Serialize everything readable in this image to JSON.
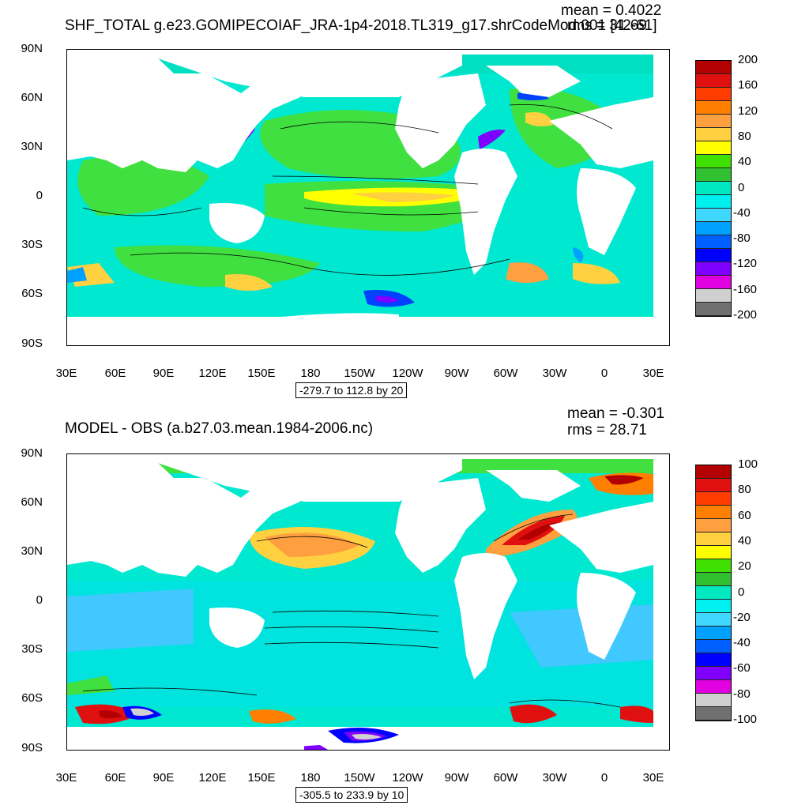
{
  "panels": [
    {
      "title": "SHF_TOTAL g.e23.GOMIPECOIAF_JRA-1p4-2018.TL319_g17.shrCodeMod.001 [42-61]",
      "mean_text": "mean = 0.4022",
      "rms_text": "rms = 31.69",
      "lat_labels": [
        "90N",
        "60N",
        "30N",
        "0",
        "30S",
        "60S",
        "90S"
      ],
      "lon_labels": [
        "30E",
        "60E",
        "90E",
        "120E",
        "150E",
        "180",
        "150W",
        "120W",
        "90W",
        "60W",
        "30W",
        "0",
        "30E"
      ],
      "contour_info": "-279.7 to 112.8 by 20",
      "colorbar_labels": [
        "200",
        "160",
        "120",
        "80",
        "40",
        "0",
        "-40",
        "-80",
        "-120",
        "-160",
        "-200"
      ],
      "colorbar_colors": [
        "#b30000",
        "#e01010",
        "#ff3c00",
        "#ff8000",
        "#ffa040",
        "#ffd040",
        "#ffff00",
        "#40e000",
        "#30c030",
        "#00e8c0",
        "#00f0f0",
        "#40d8ff",
        "#00a0ff",
        "#0060ff",
        "#0000ff",
        "#8000ff",
        "#e000e0",
        "#d0d0d0",
        "#707070"
      ]
    },
    {
      "title": "MODEL - OBS (a.b27.03.mean.1984-2006.nc)",
      "mean_text": "mean = -0.301",
      "rms_text": "rms = 28.71",
      "lat_labels": [
        "90N",
        "60N",
        "30N",
        "0",
        "30S",
        "60S",
        "90S"
      ],
      "lon_labels": [
        "30E",
        "60E",
        "90E",
        "120E",
        "150E",
        "180",
        "150W",
        "120W",
        "90W",
        "60W",
        "30W",
        "0",
        "30E"
      ],
      "contour_info": "-305.5 to 233.9 by 10",
      "colorbar_labels": [
        "100",
        "80",
        "60",
        "40",
        "20",
        "0",
        "-20",
        "-40",
        "-60",
        "-80",
        "-100"
      ],
      "colorbar_colors": [
        "#b30000",
        "#e01010",
        "#ff3c00",
        "#ff8000",
        "#ffa040",
        "#ffd040",
        "#ffff00",
        "#40e000",
        "#30c030",
        "#00e8c0",
        "#00f0f0",
        "#40d8ff",
        "#00a0ff",
        "#0060ff",
        "#0000ff",
        "#8000ff",
        "#e000e0",
        "#d0d0d0",
        "#707070"
      ]
    }
  ]
}
